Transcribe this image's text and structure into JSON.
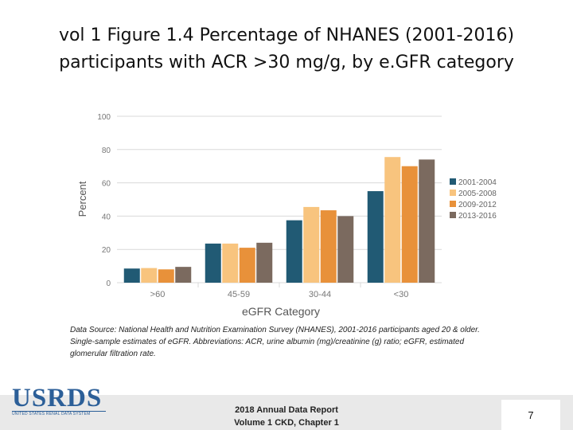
{
  "slide": {
    "title_line1": "vol 1 Figure 1.4 Percentage of NHANES (2001-2016)",
    "title_line2": "participants with ACR >30 mg/g, by e.GFR category",
    "source_note": "Data Source: National Health and Nutrition Examination Survey (NHANES), 2001-2016 participants aged 20 & older. Single-sample estimates of eGFR. Abbreviations: ACR, urine albumin (mg)/creatinine (g) ratio; eGFR, estimated glomerular filtration rate.",
    "logo_text": "USRDS",
    "logo_subtext": "UNITED STATES RENAL DATA SYSTEM",
    "report_line1": "2018 Annual Data Report",
    "report_line2": "Volume 1 CKD, Chapter 1",
    "page_number": "7"
  },
  "chart_data": {
    "type": "bar",
    "xlabel": "eGFR Category",
    "ylabel": "Percent",
    "ylim": [
      0,
      100
    ],
    "yticks": [
      0,
      20,
      40,
      60,
      80,
      100
    ],
    "grid": true,
    "legend_position": "right",
    "categories": [
      ">60",
      "45-59",
      "30-44",
      "<30"
    ],
    "series": [
      {
        "name": "2001-2004",
        "color": "#215a74",
        "values": [
          8.5,
          23.5,
          37.5,
          55
        ]
      },
      {
        "name": "2005-2008",
        "color": "#f8c47e",
        "values": [
          8.8,
          23.5,
          45.5,
          75.5
        ]
      },
      {
        "name": "2009-2012",
        "color": "#e8913a",
        "values": [
          8,
          21,
          43.5,
          70
        ]
      },
      {
        "name": "2013-2016",
        "color": "#7b6a5f",
        "values": [
          9.5,
          24,
          40,
          74
        ]
      }
    ]
  }
}
